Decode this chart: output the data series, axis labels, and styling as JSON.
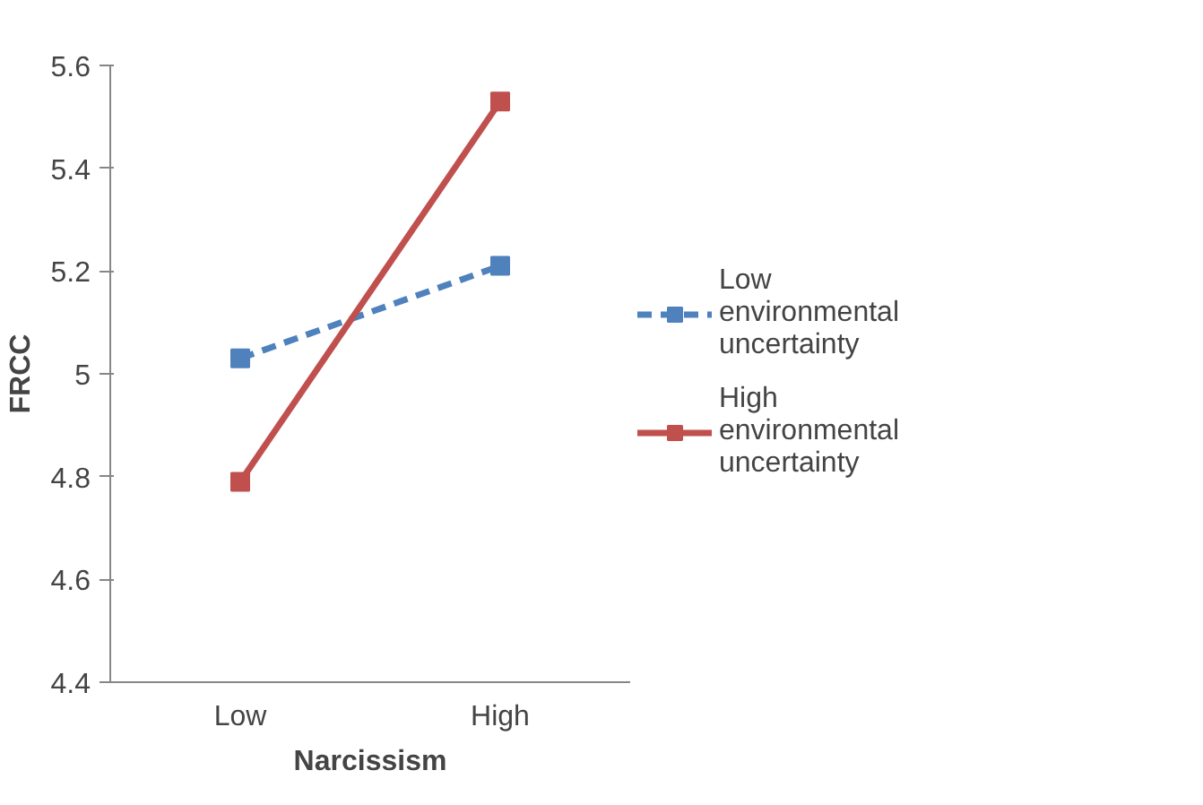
{
  "chart_data": {
    "type": "line",
    "xlabel": "Narcissism",
    "ylabel": "FRCC",
    "categories": [
      "Low",
      "High"
    ],
    "series": [
      {
        "name": "Low environmental uncertainty",
        "color": "#4f81bd",
        "values": [
          5.03,
          5.21
        ],
        "line_style": "dashed"
      },
      {
        "name": "High environmental uncertainty",
        "color": "#c0504d",
        "values": [
          4.79,
          5.53
        ],
        "line_style": "solid"
      }
    ],
    "ylim": [
      4.4,
      5.6
    ],
    "yticks": [
      4.4,
      4.6,
      4.8,
      {
        "value": 5.0,
        "label": "5"
      },
      5.2,
      5.4,
      5.6
    ],
    "grid": false,
    "legend": "right",
    "marker": "square"
  }
}
